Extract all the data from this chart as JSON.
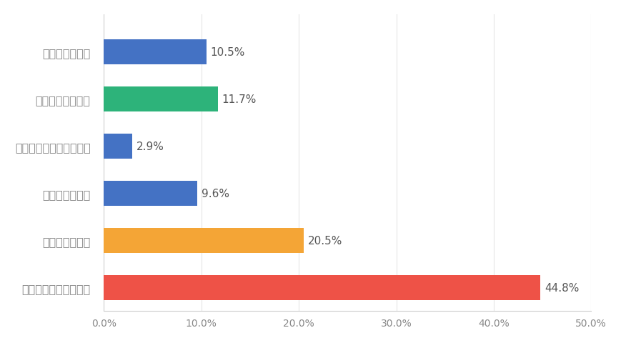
{
  "categories": [
    "自分の心の平和",
    "自分の家族の平和",
    "自分の学校や地域の平和",
    "自分の国の平和",
    "世界人類の平和",
    "自然を含む地球の平和"
  ],
  "values": [
    10.5,
    11.7,
    2.9,
    9.6,
    20.5,
    44.8
  ],
  "colors": [
    "#4472C4",
    "#2DB37A",
    "#4472C4",
    "#4472C4",
    "#F4A536",
    "#EE5247"
  ],
  "xlim": [
    0,
    50
  ],
  "xtick_labels": [
    "0.0%",
    "10.0%",
    "20.0%",
    "30.0%",
    "40.0%",
    "50.0%"
  ],
  "xtick_values": [
    0,
    10,
    20,
    30,
    40,
    50
  ],
  "bar_labels": [
    "10.5%",
    "11.7%",
    "2.9%",
    "9.6%",
    "20.5%",
    "44.8%"
  ],
  "background_color": "#FFFFFF",
  "label_color": "#888888",
  "value_color": "#555555",
  "label_fontsize": 11.5,
  "value_fontsize": 11,
  "tick_fontsize": 10,
  "bar_height": 0.52,
  "figsize": [
    8.7,
    4.81
  ],
  "dpi": 100
}
